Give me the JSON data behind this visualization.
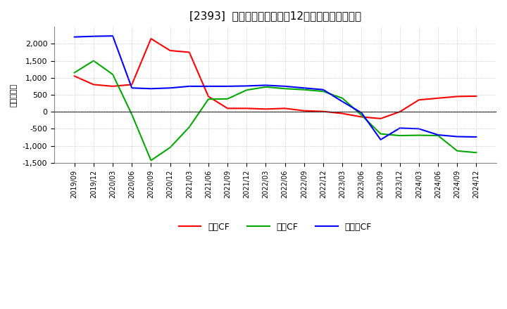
{
  "title": "[2393]  キャッシュフローの12か月移動合計の推移",
  "ylabel": "（百万円）",
  "background_color": "#ffffff",
  "grid_color": "#aaaaaa",
  "x_labels": [
    "2019/09",
    "2019/12",
    "2020/03",
    "2020/06",
    "2020/09",
    "2020/12",
    "2021/03",
    "2021/06",
    "2021/09",
    "2021/12",
    "2022/03",
    "2022/06",
    "2022/09",
    "2022/12",
    "2023/03",
    "2023/06",
    "2023/09",
    "2023/12",
    "2024/03",
    "2024/06",
    "2024/09",
    "2024/12"
  ],
  "operating_cf": [
    1050,
    800,
    750,
    800,
    2150,
    1800,
    1750,
    450,
    100,
    100,
    80,
    100,
    30,
    10,
    -50,
    -150,
    -200,
    0,
    350,
    400,
    450,
    460
  ],
  "investing_cf": [
    1150,
    1500,
    1100,
    -80,
    -1430,
    -1050,
    -450,
    370,
    380,
    640,
    730,
    680,
    650,
    600,
    400,
    -100,
    -650,
    -700,
    -690,
    -700,
    -1150,
    -1200
  ],
  "free_cf": [
    2200,
    2220,
    2230,
    700,
    680,
    700,
    750,
    750,
    750,
    760,
    780,
    750,
    700,
    650,
    300,
    -30,
    -820,
    -480,
    -500,
    -680,
    -730,
    -740
  ],
  "ylim": [
    -1500,
    2500
  ],
  "yticks": [
    -1500,
    -1000,
    -500,
    0,
    500,
    1000,
    1500,
    2000
  ],
  "operating_color": "#ff0000",
  "investing_color": "#00aa00",
  "free_color": "#0000ff",
  "legend_labels": [
    "営業CF",
    "投資CF",
    "フリーCF"
  ]
}
